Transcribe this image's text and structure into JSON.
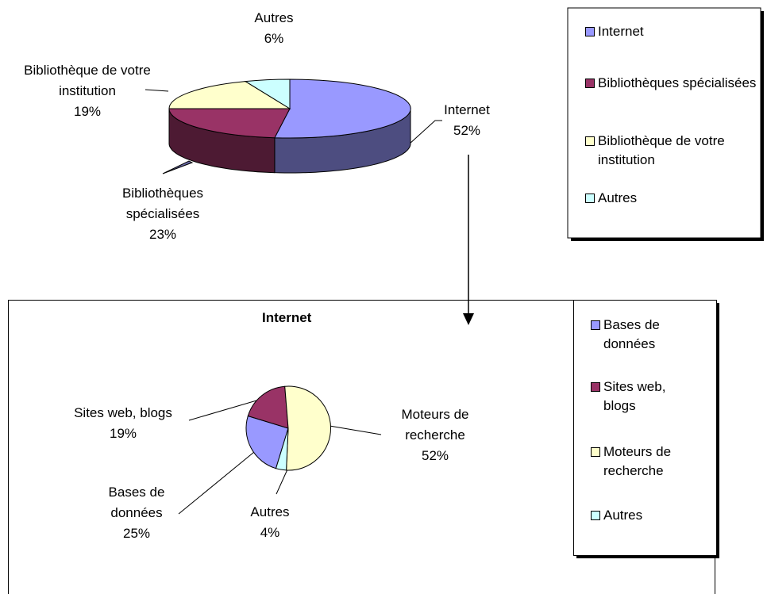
{
  "chart_data": [
    {
      "type": "pie",
      "three_d": true,
      "legend": "right",
      "categories": [
        "Internet",
        "Bibliothèques spécialisées",
        "Bibliothèque de votre institution",
        "Autres"
      ],
      "values": [
        52,
        23,
        19,
        6
      ],
      "value_labels": [
        "52%",
        "23%",
        "19%",
        "6%"
      ],
      "colors": [
        "#9999ff",
        "#993366",
        "#ffffcc",
        "#ccffff"
      ]
    },
    {
      "type": "pie",
      "three_d": false,
      "legend": "right",
      "title": "Internet",
      "categories": [
        "Bases de données",
        "Sites web, blogs",
        "Moteurs de recherche",
        "Autres"
      ],
      "values": [
        25,
        19,
        52,
        4
      ],
      "value_labels": [
        "25%",
        "19%",
        "52%",
        "4%"
      ],
      "colors": [
        "#9999ff",
        "#993366",
        "#ffffcc",
        "#ccffff"
      ]
    }
  ]
}
